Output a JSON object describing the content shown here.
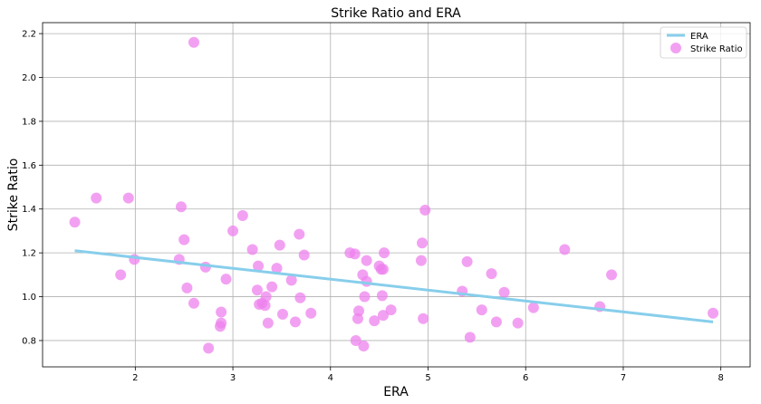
{
  "chart_data": {
    "type": "scatter",
    "title": "Strike Ratio and ERA",
    "xlabel": "ERA",
    "ylabel": "Strike Ratio",
    "xlim": [
      1.05,
      8.3
    ],
    "ylim": [
      0.68,
      2.25
    ],
    "xticks": [
      2,
      3,
      4,
      5,
      6,
      7,
      8
    ],
    "yticks": [
      0.8,
      1.0,
      1.2,
      1.4,
      1.6,
      1.8,
      2.0,
      2.2
    ],
    "xtick_labels": [
      "2",
      "3",
      "4",
      "5",
      "6",
      "7",
      "8"
    ],
    "ytick_labels": [
      "0.8",
      "1.0",
      "1.2",
      "1.4",
      "1.6",
      "1.8",
      "2.0",
      "2.2"
    ],
    "grid": true,
    "legend_position": "top-right",
    "series": [
      {
        "name": "ERA",
        "kind": "line",
        "color": "#87ceeb",
        "x": [
          1.38,
          7.92
        ],
        "y": [
          1.21,
          0.885
        ]
      },
      {
        "name": "Strike Ratio",
        "kind": "scatter",
        "color": "#ee82ee",
        "points": [
          [
            1.38,
            1.34
          ],
          [
            1.6,
            1.45
          ],
          [
            1.85,
            1.1
          ],
          [
            1.93,
            1.45
          ],
          [
            1.99,
            1.17
          ],
          [
            2.45,
            1.17
          ],
          [
            2.47,
            1.41
          ],
          [
            2.5,
            1.26
          ],
          [
            2.53,
            1.04
          ],
          [
            2.6,
            0.97
          ],
          [
            2.6,
            2.16
          ],
          [
            2.72,
            1.135
          ],
          [
            2.75,
            0.765
          ],
          [
            2.87,
            0.865
          ],
          [
            2.88,
            0.88
          ],
          [
            2.88,
            0.93
          ],
          [
            2.93,
            1.08
          ],
          [
            3.0,
            1.3
          ],
          [
            3.1,
            1.37
          ],
          [
            3.2,
            1.215
          ],
          [
            3.25,
            1.03
          ],
          [
            3.26,
            1.14
          ],
          [
            3.27,
            0.965
          ],
          [
            3.3,
            0.97
          ],
          [
            3.33,
            0.96
          ],
          [
            3.34,
            1.0
          ],
          [
            3.36,
            0.88
          ],
          [
            3.4,
            1.045
          ],
          [
            3.45,
            1.13
          ],
          [
            3.48,
            1.235
          ],
          [
            3.51,
            0.92
          ],
          [
            3.6,
            1.075
          ],
          [
            3.64,
            0.885
          ],
          [
            3.68,
            1.285
          ],
          [
            3.69,
            0.995
          ],
          [
            3.73,
            1.19
          ],
          [
            3.8,
            0.925
          ],
          [
            4.2,
            1.2
          ],
          [
            4.25,
            1.195
          ],
          [
            4.26,
            0.8
          ],
          [
            4.28,
            0.9
          ],
          [
            4.29,
            0.935
          ],
          [
            4.33,
            1.1
          ],
          [
            4.34,
            0.775
          ],
          [
            4.35,
            1.0
          ],
          [
            4.37,
            1.07
          ],
          [
            4.37,
            1.165
          ],
          [
            4.45,
            0.89
          ],
          [
            4.5,
            1.14
          ],
          [
            4.52,
            1.125
          ],
          [
            4.53,
            1.005
          ],
          [
            4.54,
            0.915
          ],
          [
            4.55,
            1.2
          ],
          [
            4.54,
            1.125
          ],
          [
            4.62,
            0.94
          ],
          [
            4.93,
            1.165
          ],
          [
            4.94,
            1.245
          ],
          [
            4.95,
            0.9
          ],
          [
            4.97,
            1.395
          ],
          [
            5.35,
            1.025
          ],
          [
            5.4,
            1.16
          ],
          [
            5.43,
            0.815
          ],
          [
            5.55,
            0.94
          ],
          [
            5.65,
            1.105
          ],
          [
            5.7,
            0.885
          ],
          [
            5.78,
            1.02
          ],
          [
            5.92,
            0.88
          ],
          [
            6.08,
            0.95
          ],
          [
            6.4,
            1.215
          ],
          [
            6.76,
            0.955
          ],
          [
            6.88,
            1.1
          ],
          [
            7.92,
            0.925
          ]
        ]
      }
    ]
  }
}
